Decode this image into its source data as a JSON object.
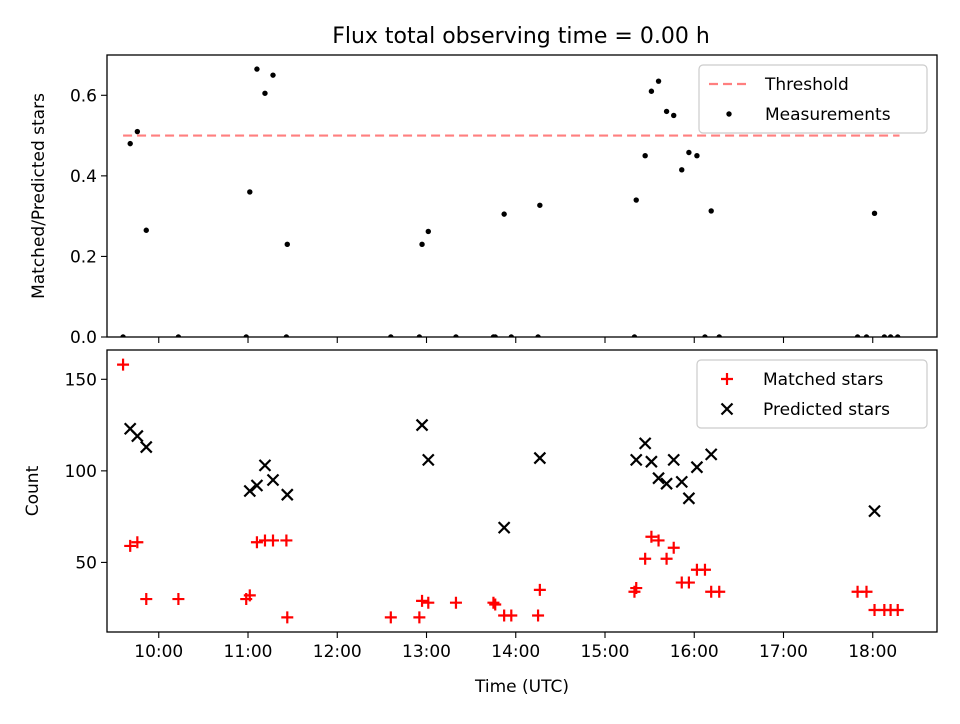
{
  "title": "Flux total observing time = 0.00 h",
  "chart_data": [
    {
      "type": "scatter",
      "ylabel": "Matched/Predicted stars",
      "xlim": [
        9.42,
        18.72
      ],
      "ylim": [
        0,
        0.7
      ],
      "yticks": [
        0.0,
        0.2,
        0.4,
        0.6
      ],
      "ytick_labels": [
        "0.0",
        "0.2",
        "0.4",
        "0.6"
      ],
      "legend_position": "top-right",
      "threshold": {
        "name": "Threshold",
        "value": 0.5,
        "x_range": [
          9.6,
          18.3
        ],
        "color": "#ff7f7f"
      },
      "series": [
        {
          "name": "Measurements",
          "marker": "dot",
          "color": "#000000",
          "x": [
            9.6,
            9.68,
            9.76,
            9.86,
            10.22,
            10.98,
            11.02,
            11.1,
            11.19,
            11.28,
            11.43,
            11.44,
            12.6,
            12.92,
            12.95,
            13.02,
            13.33,
            13.75,
            13.77,
            13.87,
            13.95,
            14.25,
            14.27,
            15.33,
            15.35,
            15.45,
            15.52,
            15.6,
            15.69,
            15.77,
            15.86,
            15.94,
            16.03,
            16.12,
            16.19,
            16.28,
            17.83,
            17.93,
            18.02,
            18.13,
            18.2,
            18.28
          ],
          "y": [
            0.0,
            0.48,
            0.51,
            0.265,
            0.0,
            0.0,
            0.36,
            0.665,
            0.605,
            0.65,
            0.0,
            0.23,
            0.0,
            0.0,
            0.23,
            0.262,
            0.0,
            0.0,
            0.0,
            0.305,
            0.0,
            0.0,
            0.327,
            0.0,
            0.34,
            0.45,
            0.61,
            0.635,
            0.56,
            0.55,
            0.415,
            0.458,
            0.45,
            0.0,
            0.313,
            0.0,
            0.0,
            0.0,
            0.307,
            0.0,
            0.0,
            0.0
          ]
        }
      ]
    },
    {
      "type": "scatter",
      "xlabel": "Time (UTC)",
      "ylabel": "Count",
      "xlim": [
        9.42,
        18.72
      ],
      "ylim": [
        12,
        166
      ],
      "yticks": [
        50,
        100,
        150
      ],
      "ytick_labels": [
        "50",
        "100",
        "150"
      ],
      "xticks": [
        10,
        11,
        12,
        13,
        14,
        15,
        16,
        17,
        18
      ],
      "xtick_labels": [
        "10:00",
        "11:00",
        "12:00",
        "13:00",
        "14:00",
        "15:00",
        "16:00",
        "17:00",
        "18:00"
      ],
      "legend_position": "top-right",
      "series": [
        {
          "name": "Matched stars",
          "marker": "plus",
          "color": "#ff0000",
          "x": [
            9.6,
            9.68,
            9.76,
            9.86,
            10.22,
            10.98,
            11.02,
            11.1,
            11.19,
            11.28,
            11.43,
            11.44,
            12.6,
            12.92,
            12.95,
            13.02,
            13.33,
            13.75,
            13.77,
            13.87,
            13.95,
            14.25,
            14.27,
            15.33,
            15.35,
            15.45,
            15.52,
            15.6,
            15.69,
            15.77,
            15.86,
            15.94,
            16.03,
            16.12,
            16.19,
            16.28,
            17.83,
            17.93,
            18.02,
            18.13,
            18.2,
            18.28
          ],
          "y": [
            158,
            59,
            61,
            30,
            30,
            30,
            32,
            61,
            62,
            62,
            62,
            20,
            20,
            20,
            29,
            28,
            28,
            28,
            27,
            21,
            21,
            21,
            35,
            34,
            36,
            52,
            64,
            62,
            52,
            58,
            39,
            39,
            46,
            46,
            34,
            34,
            34,
            34,
            24,
            24,
            24,
            24
          ]
        },
        {
          "name": "Predicted stars",
          "marker": "x",
          "color": "#000000",
          "x": [
            9.68,
            9.76,
            9.86,
            11.02,
            11.1,
            11.19,
            11.28,
            11.44,
            12.95,
            13.02,
            13.87,
            14.27,
            15.35,
            15.45,
            15.52,
            15.6,
            15.69,
            15.77,
            15.86,
            15.94,
            16.03,
            16.19,
            18.02
          ],
          "y": [
            123,
            119,
            113,
            89,
            92,
            103,
            95,
            87,
            125,
            106,
            69,
            107,
            106,
            115,
            105,
            96,
            93,
            106,
            94,
            85,
            102,
            109,
            78
          ]
        }
      ]
    }
  ]
}
